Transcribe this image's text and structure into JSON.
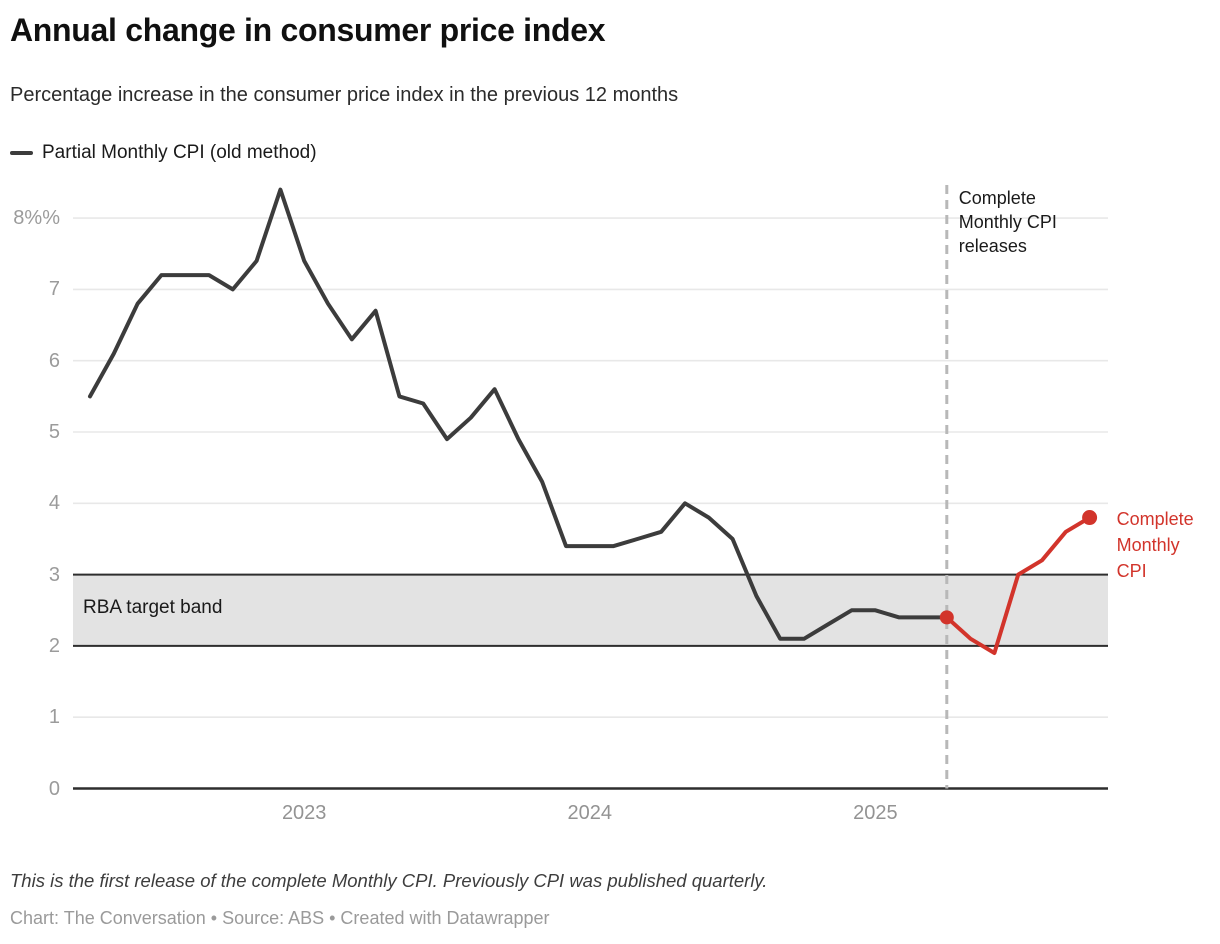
{
  "header": {
    "title": "Annual change in consumer price index",
    "subtitle": "Percentage increase in the consumer price index in the previous 12 months"
  },
  "legend": {
    "items": [
      {
        "label": "Partial Monthly CPI (old method)",
        "color": "#3c3c3c"
      }
    ]
  },
  "chart_data": {
    "type": "line",
    "x_unit": "month",
    "x_start": "2022-04",
    "x_end": "2025-10",
    "ylim": [
      0,
      8.6
    ],
    "grid": "horizontal",
    "series": [
      {
        "name": "Partial Monthly CPI (old method)",
        "color": "#3c3c3c",
        "start_index": 0,
        "dot_start": false,
        "dot_end": false,
        "values": [
          5.5,
          6.1,
          6.8,
          7.2,
          7.2,
          7.2,
          7.0,
          7.4,
          8.4,
          7.4,
          6.8,
          6.3,
          6.7,
          5.5,
          5.4,
          4.9,
          5.2,
          5.6,
          4.9,
          4.3,
          3.4,
          3.4,
          3.4,
          3.5,
          3.6,
          4.0,
          3.8,
          3.5,
          2.7,
          2.1,
          2.1,
          2.3,
          2.5,
          2.5,
          2.4,
          2.4,
          2.4
        ]
      },
      {
        "name": "Complete Monthly CPI",
        "color": "#d2342b",
        "start_index": 36,
        "dot_start": true,
        "dot_end": true,
        "values": [
          2.4,
          2.1,
          1.9,
          3.0,
          3.2,
          3.6,
          3.8
        ]
      }
    ],
    "y_ticks": [
      {
        "value": 8,
        "label": "8%%"
      },
      {
        "value": 7,
        "label": "7"
      },
      {
        "value": 6,
        "label": "6"
      },
      {
        "value": 5,
        "label": "5"
      },
      {
        "value": 4,
        "label": "4"
      },
      {
        "value": 3,
        "label": "3"
      },
      {
        "value": 2,
        "label": "2"
      },
      {
        "value": 1,
        "label": "1"
      },
      {
        "value": 0,
        "label": "0"
      }
    ],
    "x_ticks": [
      {
        "index": 9,
        "label": "2023"
      },
      {
        "index": 21,
        "label": "2024"
      },
      {
        "index": 33,
        "label": "2025"
      }
    ],
    "band": {
      "from": 2,
      "to": 3,
      "label": "RBA target band",
      "fill": "#e3e3e3",
      "border_color": "#2e2e2e"
    },
    "vline": {
      "index": 36,
      "style": "dashed",
      "color": "#b8b8b8",
      "label": "Complete Monthly CPI releases"
    },
    "series_end_label": {
      "text": "Complete Monthly CPI",
      "color": "#d2342b"
    },
    "colors": {
      "grid": "#e8e8e8",
      "axis": "#2e2e2e"
    }
  },
  "footer": {
    "note": "This is the first release of the complete Monthly CPI. Previously CPI was published quarterly.",
    "credit": "Chart: The Conversation • Source: ABS • Created with Datawrapper"
  }
}
